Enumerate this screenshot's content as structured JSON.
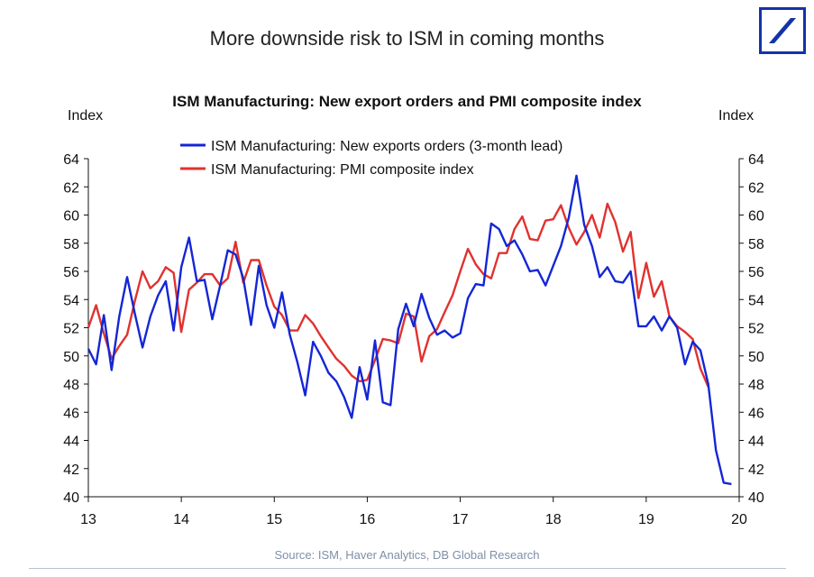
{
  "slide_title": "More downside risk to ISM in coming months",
  "source_note": "Source: ISM, Haver Analytics, DB Global Research",
  "colors": {
    "logo_blue": "#1433a8",
    "exports": "#1426d6",
    "pmi": "#e0322f"
  },
  "chart_data": {
    "type": "line",
    "title": "ISM Manufacturing: New export orders and PMI composite index",
    "ylabel_left": "Index",
    "ylabel_right": "Index",
    "xlim": [
      13,
      20
    ],
    "ylim": [
      40,
      64
    ],
    "x_ticks": [
      13,
      14,
      15,
      16,
      17,
      18,
      19,
      20
    ],
    "x_tick_labels": [
      "13",
      "14",
      "15",
      "16",
      "17",
      "18",
      "19",
      "20"
    ],
    "y_ticks": [
      40,
      42,
      44,
      46,
      48,
      50,
      52,
      54,
      56,
      58,
      60,
      62,
      64
    ],
    "y_tick_labels": [
      "40",
      "42",
      "44",
      "46",
      "48",
      "50",
      "52",
      "54",
      "56",
      "58",
      "60",
      "62",
      "64"
    ],
    "grid": false,
    "legend_position": "top-center",
    "series": [
      {
        "name": "ISM Manufacturing: New exports orders (3-month lead)",
        "color": "#1426d6",
        "x": [
          13.0,
          13.083,
          13.167,
          13.25,
          13.333,
          13.417,
          13.5,
          13.583,
          13.667,
          13.75,
          13.833,
          13.917,
          14.0,
          14.083,
          14.167,
          14.25,
          14.333,
          14.417,
          14.5,
          14.583,
          14.667,
          14.75,
          14.833,
          14.917,
          15.0,
          15.083,
          15.167,
          15.25,
          15.333,
          15.417,
          15.5,
          15.583,
          15.667,
          15.75,
          15.833,
          15.917,
          16.0,
          16.083,
          16.167,
          16.25,
          16.333,
          16.417,
          16.5,
          16.583,
          16.667,
          16.75,
          16.833,
          16.917,
          17.0,
          17.083,
          17.167,
          17.25,
          17.333,
          17.417,
          17.5,
          17.583,
          17.667,
          17.75,
          17.833,
          17.917,
          18.0,
          18.083,
          18.167,
          18.25,
          18.333,
          18.417,
          18.5,
          18.583,
          18.667,
          18.75,
          18.833,
          18.917,
          19.0,
          19.083,
          19.167,
          19.25,
          19.333,
          19.417,
          19.5,
          19.583,
          19.667,
          19.75,
          19.833,
          19.917
        ],
        "values": [
          50.5,
          49.4,
          52.9,
          49.0,
          52.8,
          55.6,
          53.0,
          50.6,
          52.8,
          54.3,
          55.3,
          51.8,
          56.3,
          58.4,
          55.3,
          55.4,
          52.6,
          55.0,
          57.5,
          57.2,
          55.5,
          52.2,
          56.4,
          53.6,
          52.0,
          54.5,
          51.5,
          49.5,
          47.2,
          51.0,
          50.0,
          48.8,
          48.2,
          47.1,
          45.6,
          49.2,
          46.9,
          51.1,
          46.7,
          46.5,
          51.9,
          53.7,
          52.1,
          54.4,
          52.7,
          51.5,
          51.8,
          51.3,
          51.6,
          54.1,
          55.1,
          55.0,
          59.4,
          59.0,
          57.8,
          58.2,
          57.2,
          56.0,
          56.1,
          55.0,
          56.4,
          57.8,
          59.8,
          62.8,
          59.3,
          57.8,
          55.6,
          56.3,
          55.3,
          55.2,
          56.0,
          52.1,
          52.1,
          52.8,
          51.8,
          52.8,
          52.0,
          49.4,
          51.0,
          50.4,
          48.0,
          43.3,
          41.0,
          40.9
        ]
      },
      {
        "name": "ISM Manufacturing: PMI composite index",
        "color": "#e0322f",
        "x": [
          13.0,
          13.083,
          13.167,
          13.25,
          13.333,
          13.417,
          13.5,
          13.583,
          13.667,
          13.75,
          13.833,
          13.917,
          14.0,
          14.083,
          14.167,
          14.25,
          14.333,
          14.417,
          14.5,
          14.583,
          14.667,
          14.75,
          14.833,
          14.917,
          15.0,
          15.083,
          15.167,
          15.25,
          15.333,
          15.417,
          15.5,
          15.583,
          15.667,
          15.75,
          15.833,
          15.917,
          16.0,
          16.083,
          16.167,
          16.25,
          16.333,
          16.417,
          16.5,
          16.583,
          16.667,
          16.75,
          16.833,
          16.917,
          17.0,
          17.083,
          17.167,
          17.25,
          17.333,
          17.417,
          17.5,
          17.583,
          17.667,
          17.75,
          17.833,
          17.917,
          18.0,
          18.083,
          18.167,
          18.25,
          18.333,
          18.417,
          18.5,
          18.583,
          18.667,
          18.75,
          18.833,
          18.917,
          19.0,
          19.083,
          19.167,
          19.25,
          19.333,
          19.417,
          19.5,
          19.583,
          19.667
        ],
        "values": [
          52.0,
          53.6,
          51.6,
          49.8,
          50.7,
          51.5,
          53.9,
          56.0,
          54.8,
          55.3,
          56.3,
          55.9,
          51.7,
          54.7,
          55.2,
          55.8,
          55.8,
          55.0,
          55.5,
          58.1,
          55.2,
          56.8,
          56.8,
          55.0,
          53.5,
          52.9,
          51.8,
          51.8,
          52.9,
          52.3,
          51.4,
          50.6,
          49.8,
          49.3,
          48.6,
          48.2,
          48.3,
          49.7,
          51.2,
          51.1,
          50.9,
          53.0,
          52.8,
          49.6,
          51.4,
          51.9,
          53.1,
          54.3,
          56.0,
          57.6,
          56.5,
          55.8,
          55.5,
          57.3,
          57.3,
          59.0,
          59.9,
          58.3,
          58.2,
          59.6,
          59.7,
          60.7,
          59.1,
          57.9,
          58.8,
          60.0,
          58.4,
          60.8,
          59.5,
          57.4,
          58.8,
          54.1,
          56.6,
          54.2,
          55.3,
          52.8,
          52.1,
          51.7,
          51.2,
          49.1,
          47.8
        ]
      }
    ]
  }
}
